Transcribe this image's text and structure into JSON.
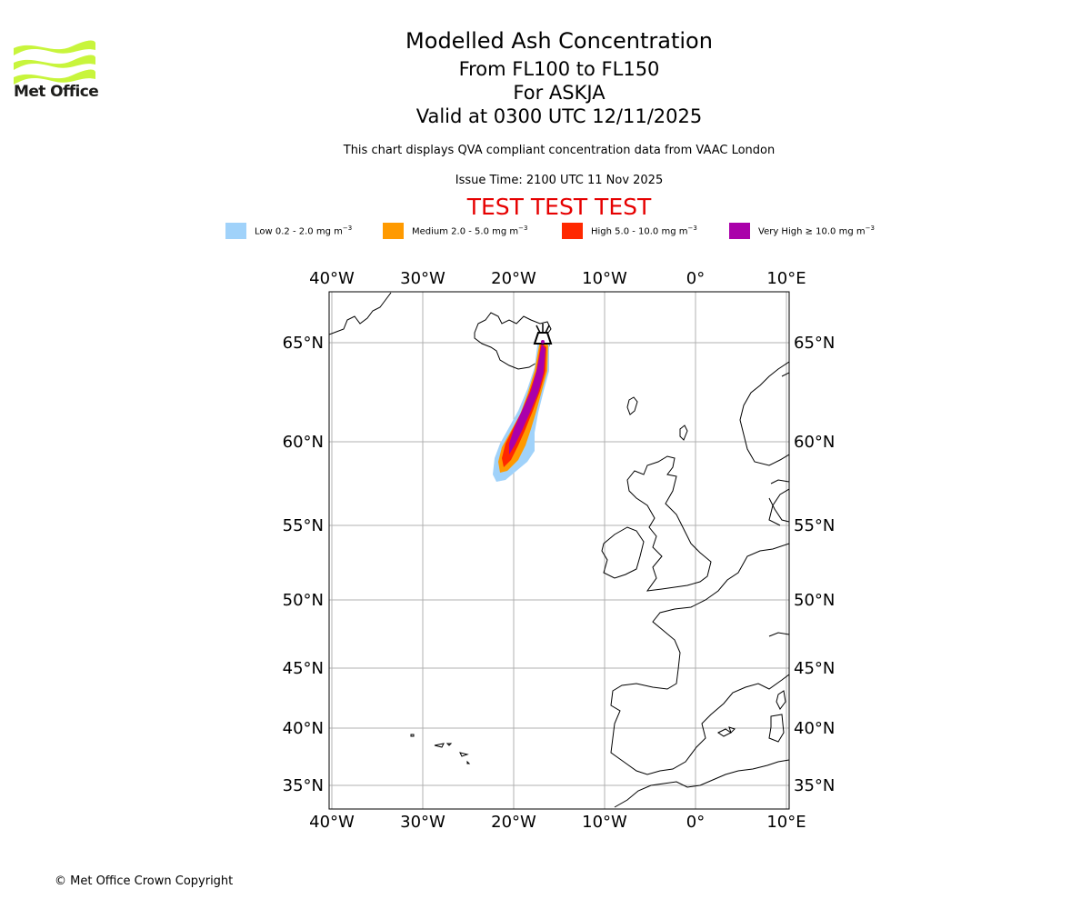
{
  "logo": {
    "icon": "met-office-wave-logo",
    "wordmark": "Met Office",
    "color": "#c8f53c"
  },
  "header": {
    "title": "Modelled Ash Concentration",
    "subtitle_levels": "From FL100 to FL150",
    "subtitle_volcano": "For ASKJA",
    "subtitle_valid": "Valid at 0300 UTC 12/11/2025",
    "disclaimer": "This chart displays QVA compliant concentration data from VAAC London",
    "issue_time": "Issue Time: 2100 UTC 11 Nov 2025",
    "test_banner": "TEST TEST TEST"
  },
  "legend": [
    {
      "label_prefix": "Low 0.2 - 2.0 mg m",
      "exp": "−3",
      "color": "#a0d2fa"
    },
    {
      "label_prefix": "Medium 2.0 - 5.0 mg m",
      "exp": "−3",
      "color": "#ff9a00"
    },
    {
      "label_prefix": "High 5.0 - 10.0 mg m",
      "exp": "−3",
      "color": "#ff2800"
    },
    {
      "label_prefix": "Very High  ≥  10.0 mg m",
      "exp": "−3",
      "color": "#aa00aa"
    }
  ],
  "map": {
    "lon_range": [
      -40,
      10
    ],
    "lat_range": [
      34,
      67
    ],
    "lon_ticks": [
      "40°W",
      "30°W",
      "20°W",
      "10°W",
      "0°",
      "10°E"
    ],
    "lat_ticks": [
      "65°N",
      "60°N",
      "55°N",
      "50°N",
      "45°N",
      "40°N",
      "35°N"
    ],
    "volcano": {
      "name": "ASKJA",
      "lat": 65.0,
      "lon": -16.8,
      "icon": "volcano-icon"
    }
  },
  "footer": {
    "copyright": "© Met Office Crown Copyright"
  }
}
